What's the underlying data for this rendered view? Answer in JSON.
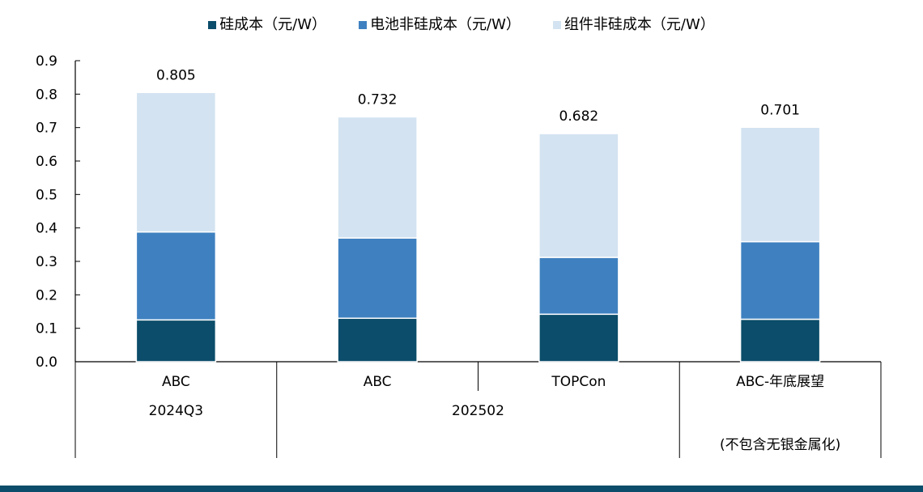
{
  "chart_data": {
    "type": "bar",
    "stacked": true,
    "categories": [
      "ABC",
      "ABC",
      "TOPCon",
      "ABC-年底展望"
    ],
    "groups": [
      {
        "label": "2024Q3",
        "categories": [
          0
        ]
      },
      {
        "label": "202502",
        "categories": [
          1,
          2
        ]
      },
      {
        "label": "(不包含无银金属化)",
        "categories": [
          3
        ]
      }
    ],
    "series": [
      {
        "name": "硅成本（元/W）",
        "color": "#0b4d6a",
        "values": [
          0.125,
          0.13,
          0.142,
          0.127
        ]
      },
      {
        "name": "电池非硅成本（元/W）",
        "color": "#3f81c0",
        "values": [
          0.263,
          0.24,
          0.17,
          0.232
        ]
      },
      {
        "name": "组件非硅成本（元/W）",
        "color": "#d3e3f1",
        "values": [
          0.417,
          0.362,
          0.37,
          0.342
        ]
      }
    ],
    "totals": [
      "0.805",
      "0.732",
      "0.682",
      "0.701"
    ],
    "ylim": [
      0,
      0.9
    ],
    "yticks": [
      "0.0",
      "0.1",
      "0.2",
      "0.3",
      "0.4",
      "0.5",
      "0.6",
      "0.7",
      "0.8",
      "0.9"
    ],
    "legend_position": "top-center",
    "grid": false
  }
}
